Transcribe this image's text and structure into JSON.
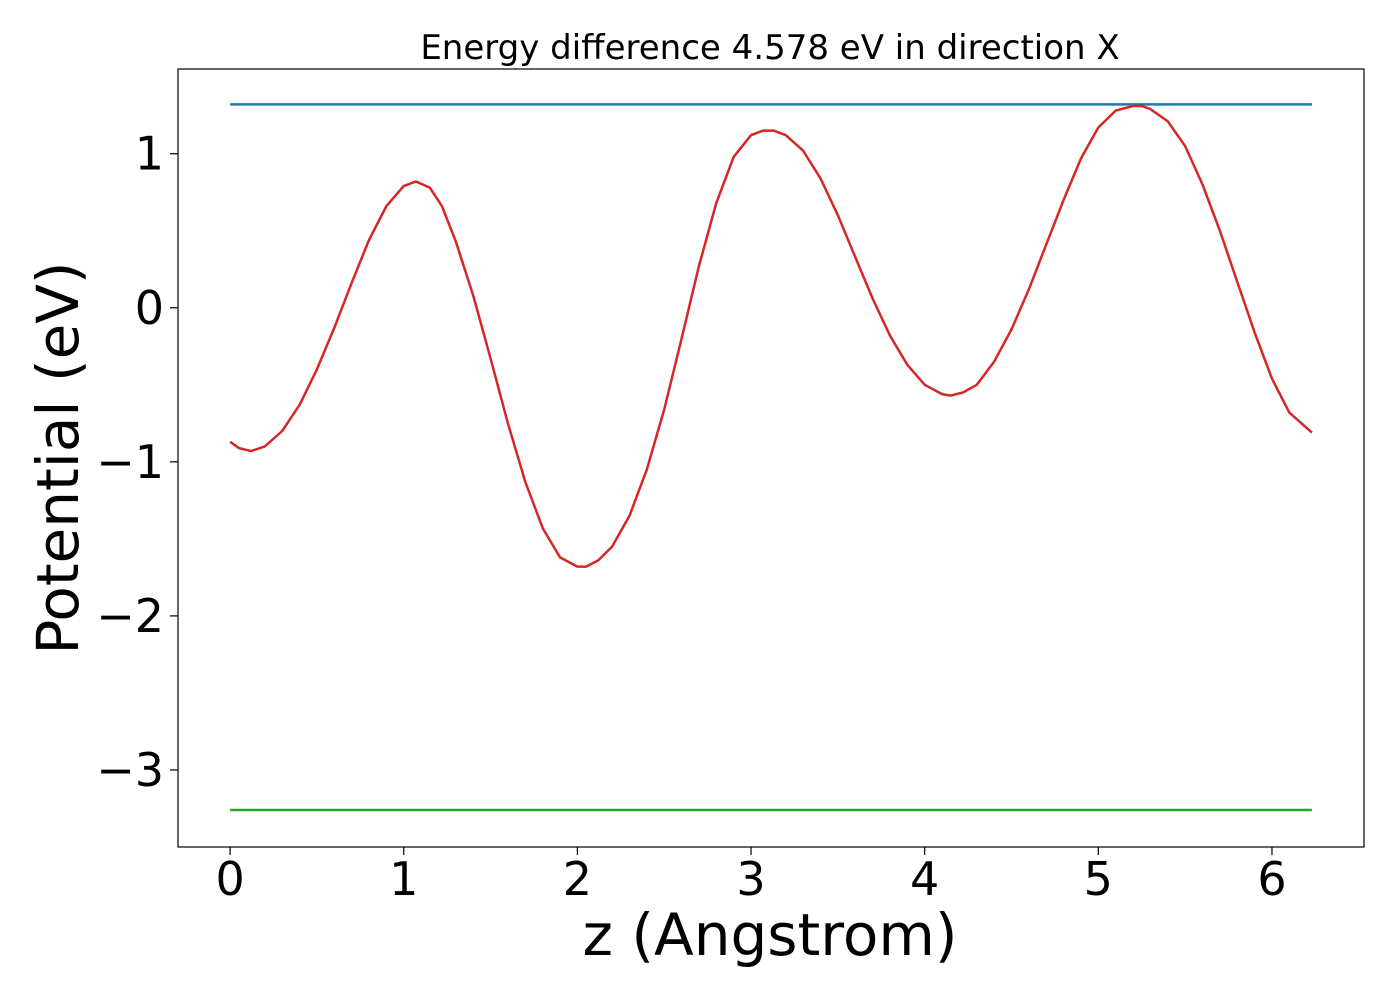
{
  "chart_data": {
    "type": "line",
    "title": "Energy difference 4.578 eV in direction X",
    "xlabel": "z (Angstrom)",
    "ylabel": "Potential (eV)",
    "xlim": [
      -0.3,
      6.53
    ],
    "ylim": [
      -3.5,
      1.55
    ],
    "x_ticks": [
      0,
      1,
      2,
      3,
      4,
      5,
      6
    ],
    "x_tick_labels": [
      "0",
      "1",
      "2",
      "3",
      "4",
      "5",
      "6"
    ],
    "y_ticks": [
      1,
      0,
      -1,
      -2,
      -3
    ],
    "y_tick_labels": [
      "1",
      "0",
      "−1",
      "−2",
      "−3"
    ],
    "grid": false,
    "series": [
      {
        "color": "#1f77b4",
        "x": [
          0,
          6.23
        ],
        "y": [
          1.32,
          1.32
        ]
      },
      {
        "color": "#2ca02c",
        "x": [
          0,
          6.23
        ],
        "y": [
          -3.26,
          -3.26
        ]
      },
      {
        "color": "#d62728",
        "x": [
          0,
          0.05,
          0.12,
          0.2,
          0.3,
          0.4,
          0.5,
          0.6,
          0.7,
          0.8,
          0.9,
          1.0,
          1.07,
          1.15,
          1.22,
          1.3,
          1.4,
          1.5,
          1.6,
          1.7,
          1.8,
          1.9,
          2.0,
          2.05,
          2.12,
          2.2,
          2.3,
          2.4,
          2.5,
          2.6,
          2.7,
          2.8,
          2.9,
          3.0,
          3.07,
          3.13,
          3.2,
          3.3,
          3.4,
          3.5,
          3.6,
          3.7,
          3.8,
          3.9,
          4.0,
          4.1,
          4.15,
          4.22,
          4.3,
          4.4,
          4.5,
          4.6,
          4.7,
          4.8,
          4.9,
          5.0,
          5.1,
          5.2,
          5.25,
          5.3,
          5.4,
          5.5,
          5.6,
          5.7,
          5.8,
          5.9,
          6.0,
          6.1,
          6.23
        ],
        "y": [
          -0.87,
          -0.91,
          -0.93,
          -0.9,
          -0.8,
          -0.63,
          -0.4,
          -0.13,
          0.16,
          0.44,
          0.66,
          0.79,
          0.82,
          0.78,
          0.66,
          0.43,
          0.08,
          -0.33,
          -0.75,
          -1.13,
          -1.43,
          -1.62,
          -1.68,
          -1.68,
          -1.64,
          -1.55,
          -1.35,
          -1.05,
          -0.66,
          -0.2,
          0.27,
          0.68,
          0.98,
          1.12,
          1.15,
          1.15,
          1.12,
          1.02,
          0.84,
          0.6,
          0.33,
          0.06,
          -0.18,
          -0.37,
          -0.5,
          -0.56,
          -0.57,
          -0.55,
          -0.5,
          -0.35,
          -0.14,
          0.12,
          0.41,
          0.7,
          0.97,
          1.17,
          1.28,
          1.31,
          1.31,
          1.29,
          1.21,
          1.05,
          0.8,
          0.5,
          0.17,
          -0.16,
          -0.46,
          -0.68,
          -0.81
        ]
      }
    ]
  }
}
